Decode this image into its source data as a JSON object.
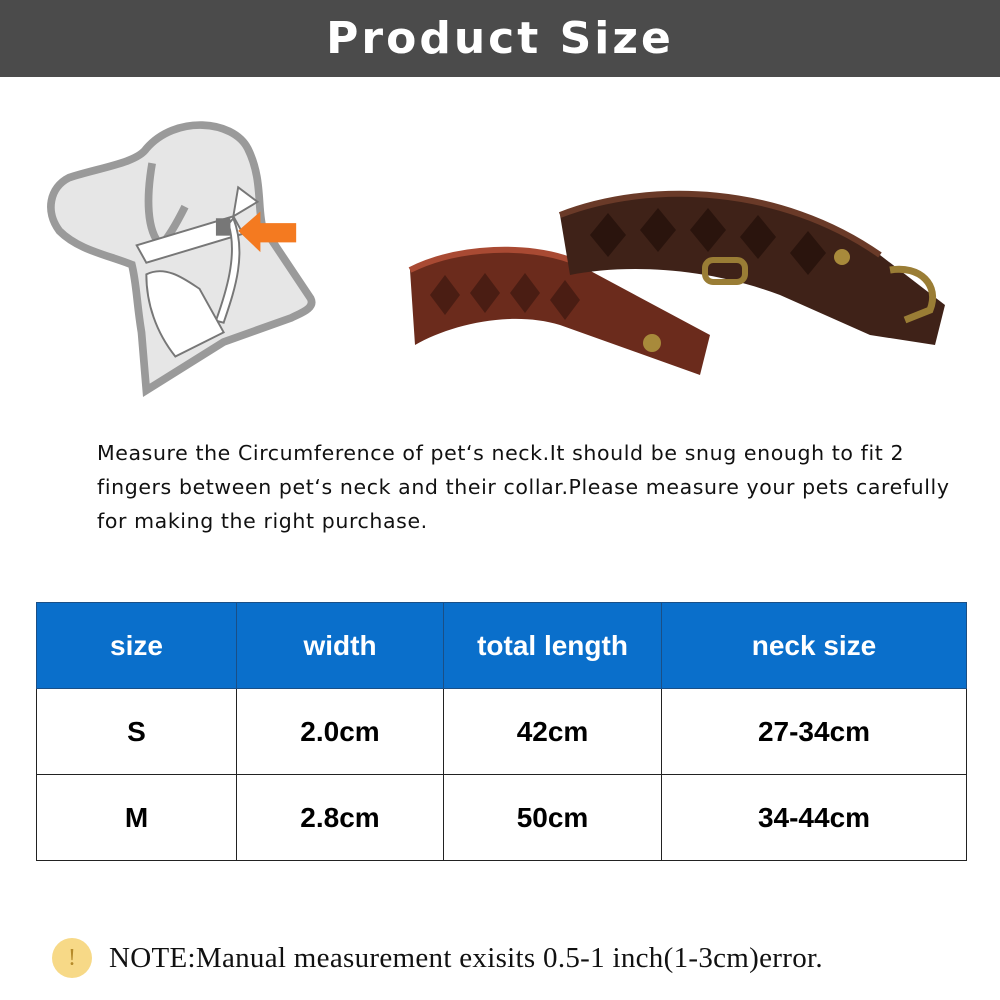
{
  "header": {
    "title": "Product Size"
  },
  "description": "Measure the Circumference of pet‘s neck.It should be snug enough to fit 2 fingers between pet‘s neck and their collar.Please measure your pets carefully for making the right purchase.",
  "table": {
    "headers": [
      "size",
      "width",
      "total length",
      "neck size"
    ],
    "rows": [
      [
        "S",
        "2.0cm",
        "42cm",
        "27-34cm"
      ],
      [
        "M",
        "2.8cm",
        "50cm",
        "34-44cm"
      ]
    ]
  },
  "note": {
    "icon": "exclamation-icon",
    "text": "NOTE:Manual measurement exisits 0.5-1 inch(1-3cm)error."
  },
  "colors": {
    "banner": "#4b4b4b",
    "table_header": "#0a6fcb",
    "arrow": "#f47a20",
    "note_icon": "#f7d987"
  }
}
